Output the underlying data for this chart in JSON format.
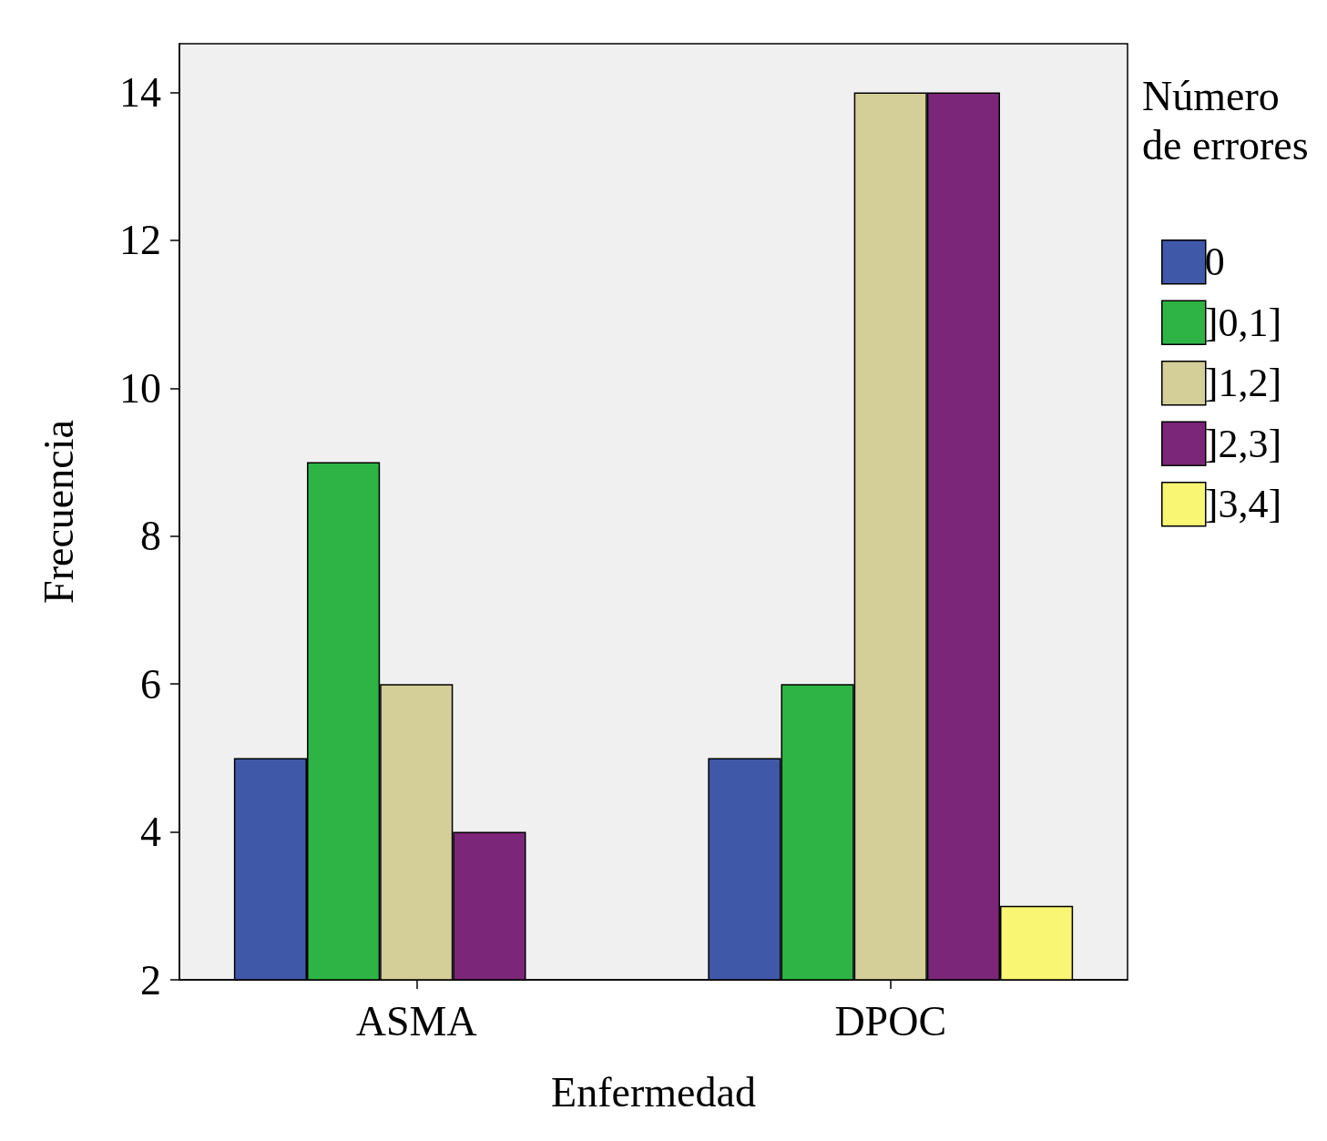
{
  "chart_data": {
    "type": "bar",
    "xlabel": "Enfermedad",
    "ylabel": "Frecuencia",
    "legend_title": "Número de errores",
    "categories": [
      "ASMA",
      "DPOC"
    ],
    "series": [
      {
        "name": "0",
        "color": "#3f58a8",
        "values": [
          5,
          5
        ]
      },
      {
        "name": "]0,1]",
        "color": "#2db444",
        "values": [
          9,
          6
        ]
      },
      {
        "name": "]1,2]",
        "color": "#d4ce98",
        "values": [
          6,
          14
        ]
      },
      {
        "name": "]2,3]",
        "color": "#7b2678",
        "values": [
          4,
          14
        ]
      },
      {
        "name": "]3,4]",
        "color": "#f8f673",
        "values": [
          null,
          3
        ]
      }
    ],
    "ylim": [
      2,
      14.66
    ],
    "yticks": [
      2,
      4,
      6,
      8,
      10,
      12,
      14
    ],
    "grid": false,
    "legend": "top right"
  }
}
